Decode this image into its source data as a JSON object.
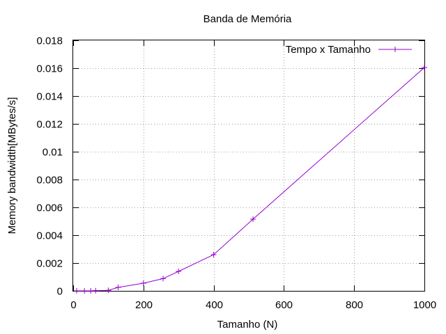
{
  "chart_data": {
    "type": "line",
    "title": "Banda de Memória",
    "xlabel": "Tamanho (N)",
    "ylabel": "Memory bandwidth[MBytes/s]",
    "xlim": [
      0,
      1000
    ],
    "ylim": [
      0,
      0.018
    ],
    "xticks": [
      0,
      200,
      400,
      600,
      800,
      1000
    ],
    "xtick_labels": [
      "0",
      "200",
      "400",
      "600",
      "800",
      "1000"
    ],
    "yticks": [
      0,
      0.002,
      0.004,
      0.006,
      0.008,
      0.01,
      0.012,
      0.014,
      0.016,
      0.018
    ],
    "ytick_labels": [
      "0",
      "0.002",
      "0.004",
      "0.006",
      "0.008",
      "0.01",
      "0.012",
      "0.014",
      "0.016",
      "0.018"
    ],
    "grid": true,
    "legend_position": "top-right",
    "series": [
      {
        "name": "Tempo x Tamanho",
        "color": "#9400d3",
        "marker": "plus",
        "x": [
          10,
          32,
          50,
          64,
          100,
          128,
          200,
          256,
          300,
          400,
          512,
          1000
        ],
        "y": [
          0.0,
          0.0,
          0.0,
          1e-05,
          4e-05,
          0.00025,
          0.00055,
          0.00088,
          0.0014,
          0.0026,
          0.00515,
          0.01605
        ]
      }
    ]
  }
}
